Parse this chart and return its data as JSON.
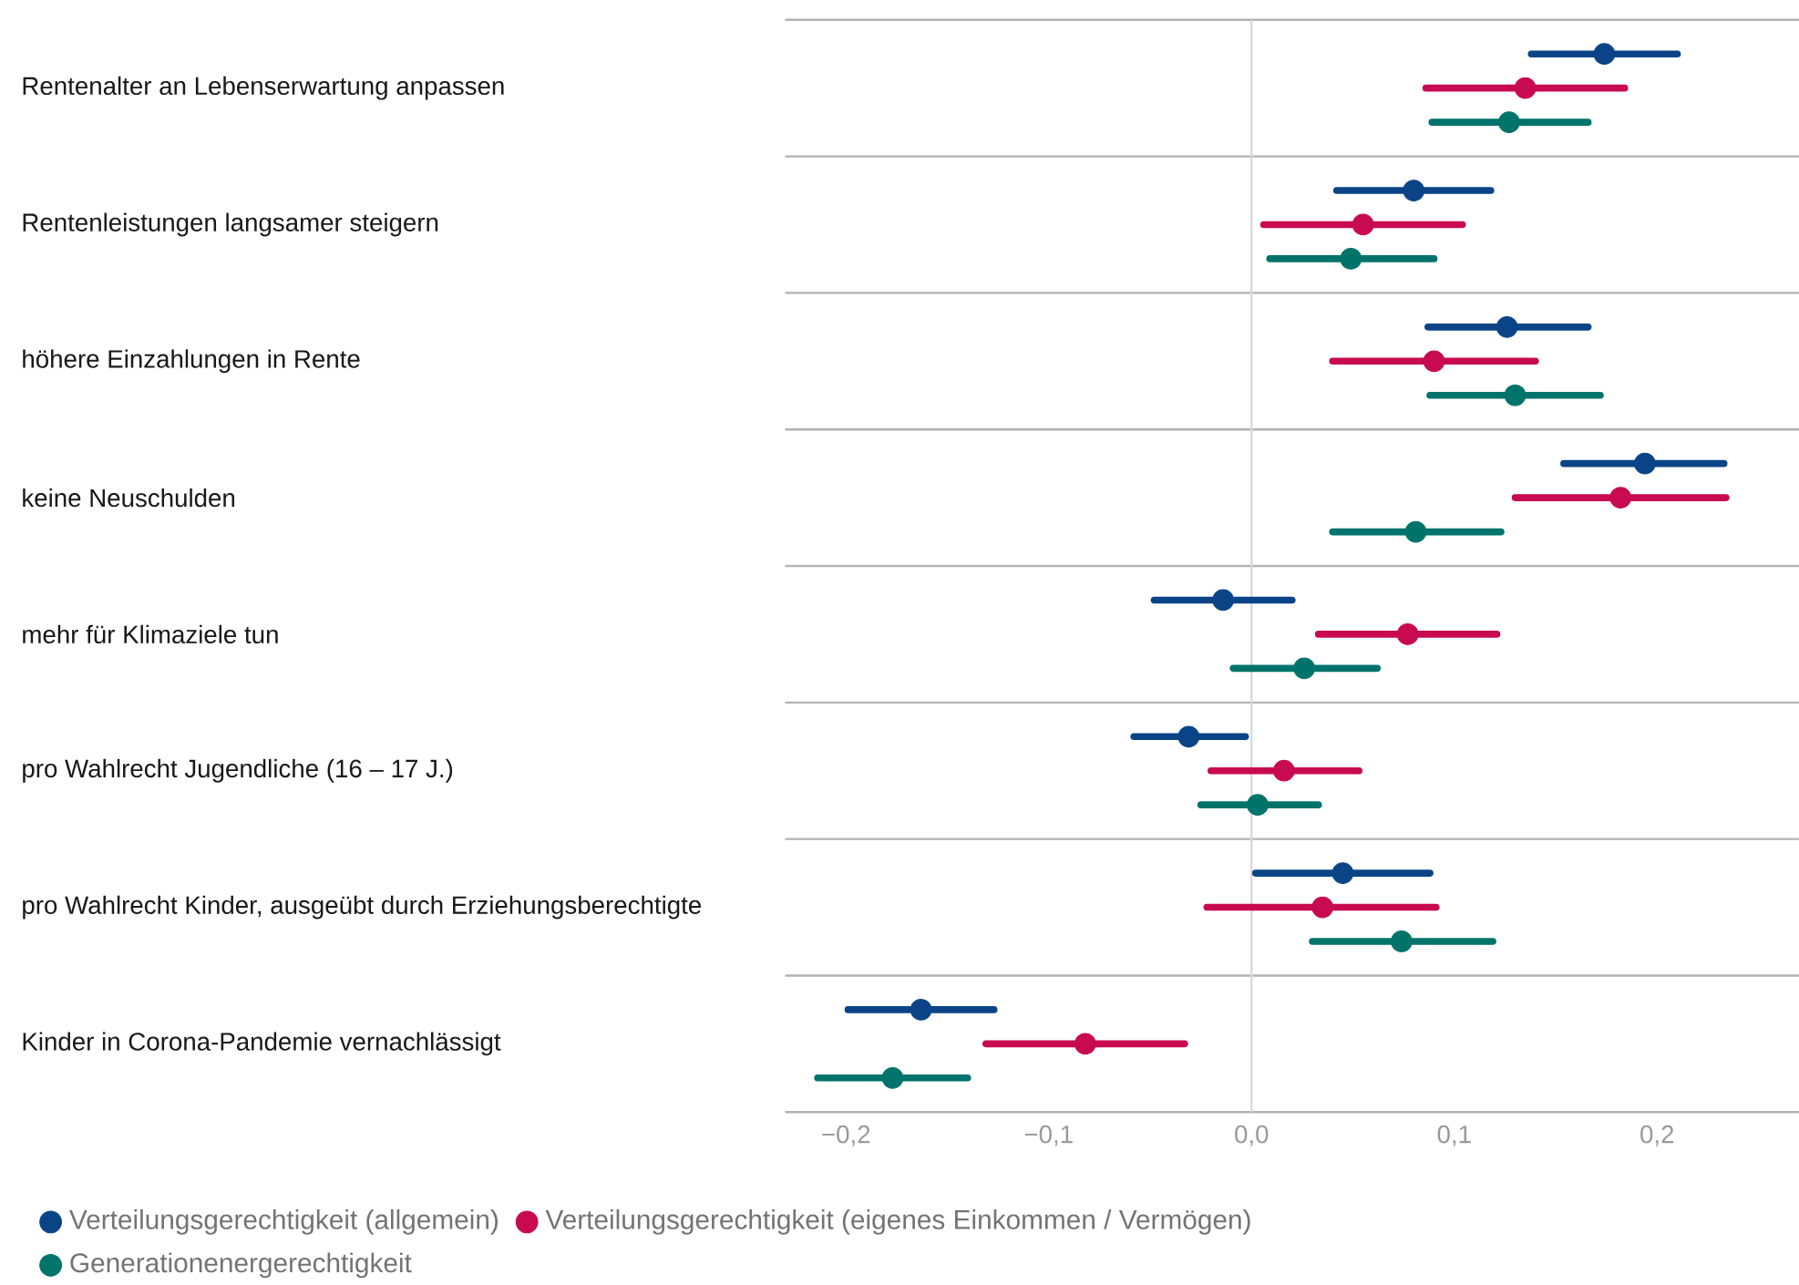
{
  "chart_data": {
    "type": "scatter",
    "orientation": "horizontal",
    "categories": [
      "Rentenalter an Lebenserwartung anpassen",
      "Rentenleistungen langsamer steigern",
      "höhere Einzahlungen in Rente",
      "keine Neuschulden",
      "mehr für Klimaziele tun",
      "pro Wahlrecht Jugendliche (16 – 17 J.)",
      "pro Wahlrecht Kinder, ausgeübt durch Erziehungsberechtigte",
      "Kinder in Corona-Pandemie vernachlässigt"
    ],
    "series": [
      {
        "name": "Verteilungsgerechtigkeit (allgemein)",
        "color": "#0a4487",
        "values": [
          0.174,
          0.08,
          0.126,
          0.194,
          -0.014,
          -0.031,
          0.045,
          -0.163
        ],
        "errors": [
          [
            0.138,
            0.21
          ],
          [
            0.042,
            0.118
          ],
          [
            0.087,
            0.166
          ],
          [
            0.154,
            0.233
          ],
          [
            -0.048,
            0.02
          ],
          [
            -0.058,
            -0.003
          ],
          [
            0.002,
            0.088
          ],
          [
            -0.199,
            -0.127
          ]
        ]
      },
      {
        "name": "Verteilungsgerechtigkeit (eigenes Einkommen / Vermögen)",
        "color": "#c80a50",
        "values": [
          0.135,
          0.055,
          0.09,
          0.182,
          0.077,
          0.016,
          0.035,
          -0.082
        ],
        "errors": [
          [
            0.086,
            0.184
          ],
          [
            0.006,
            0.104
          ],
          [
            0.04,
            0.14
          ],
          [
            0.13,
            0.234
          ],
          [
            0.033,
            0.121
          ],
          [
            -0.02,
            0.053
          ],
          [
            -0.022,
            0.091
          ],
          [
            -0.131,
            -0.033
          ]
        ]
      },
      {
        "name": "Generationenergerechtigkeit",
        "color": "#00736b",
        "values": [
          0.127,
          0.049,
          0.13,
          0.081,
          0.026,
          0.003,
          0.074,
          -0.177
        ],
        "errors": [
          [
            0.089,
            0.166
          ],
          [
            0.009,
            0.09
          ],
          [
            0.088,
            0.172
          ],
          [
            0.04,
            0.123
          ],
          [
            -0.009,
            0.062
          ],
          [
            -0.025,
            0.033
          ],
          [
            0.03,
            0.119
          ],
          [
            -0.214,
            -0.14
          ]
        ]
      }
    ],
    "xlim": [
      -0.23,
      0.27
    ],
    "xticks": [
      {
        "value": -0.2,
        "label": "−0,2"
      },
      {
        "value": -0.1,
        "label": "−0,1"
      },
      {
        "value": 0,
        "label": "0,0"
      },
      {
        "value": 0.1,
        "label": "0,1"
      },
      {
        "value": 0.2,
        "label": "0,2"
      }
    ],
    "ref_lines": [
      {
        "axis": "x",
        "value": 0,
        "color": "#d9d9d9"
      }
    ],
    "grid": "y",
    "legend": "bottom",
    "marker": "circle"
  }
}
